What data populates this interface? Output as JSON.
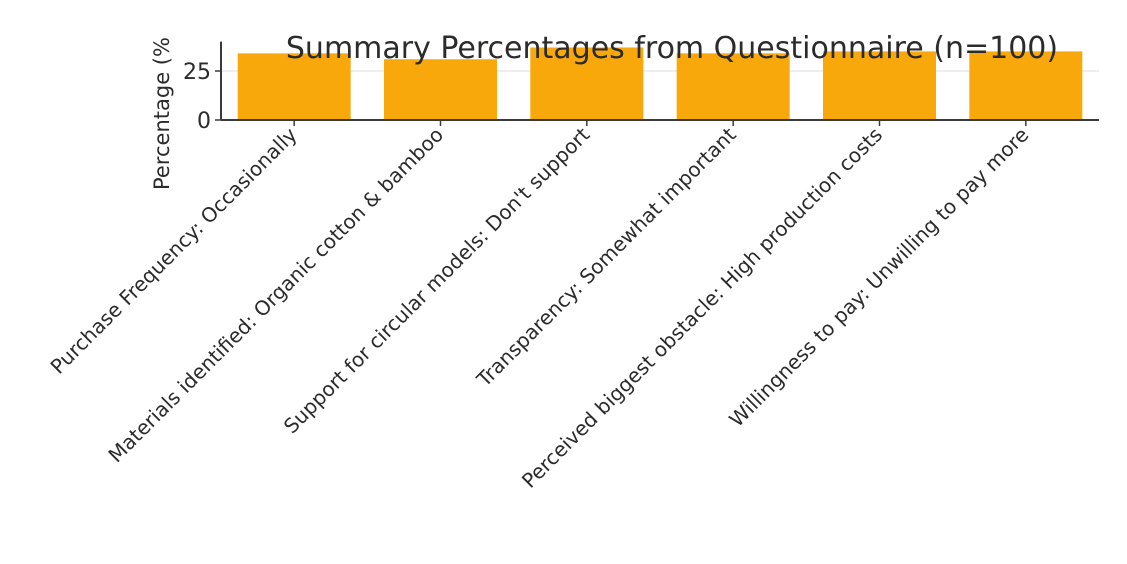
{
  "chart_data": {
    "type": "bar",
    "title": "Summary Percentages from Questionnaire (n=100)",
    "xlabel": "",
    "ylabel": "Percentage (%",
    "categories": [
      "Purchase Frequency: Occasionally",
      "Materials identified: Organic cotton & bamboo",
      "Support for circular models: Don't support",
      "Transparency: Somewhat important",
      "Perceived biggest obstacle: High production costs",
      "Willingness to pay: Unwilling to pay more"
    ],
    "values": [
      34,
      31,
      37,
      34,
      35,
      35
    ],
    "ylim": [
      0,
      40
    ],
    "yticks": [
      "0",
      "25"
    ],
    "ytick_values": [
      0,
      25
    ],
    "bar_color": "#F9A80C",
    "grid": true,
    "legend": "none"
  }
}
